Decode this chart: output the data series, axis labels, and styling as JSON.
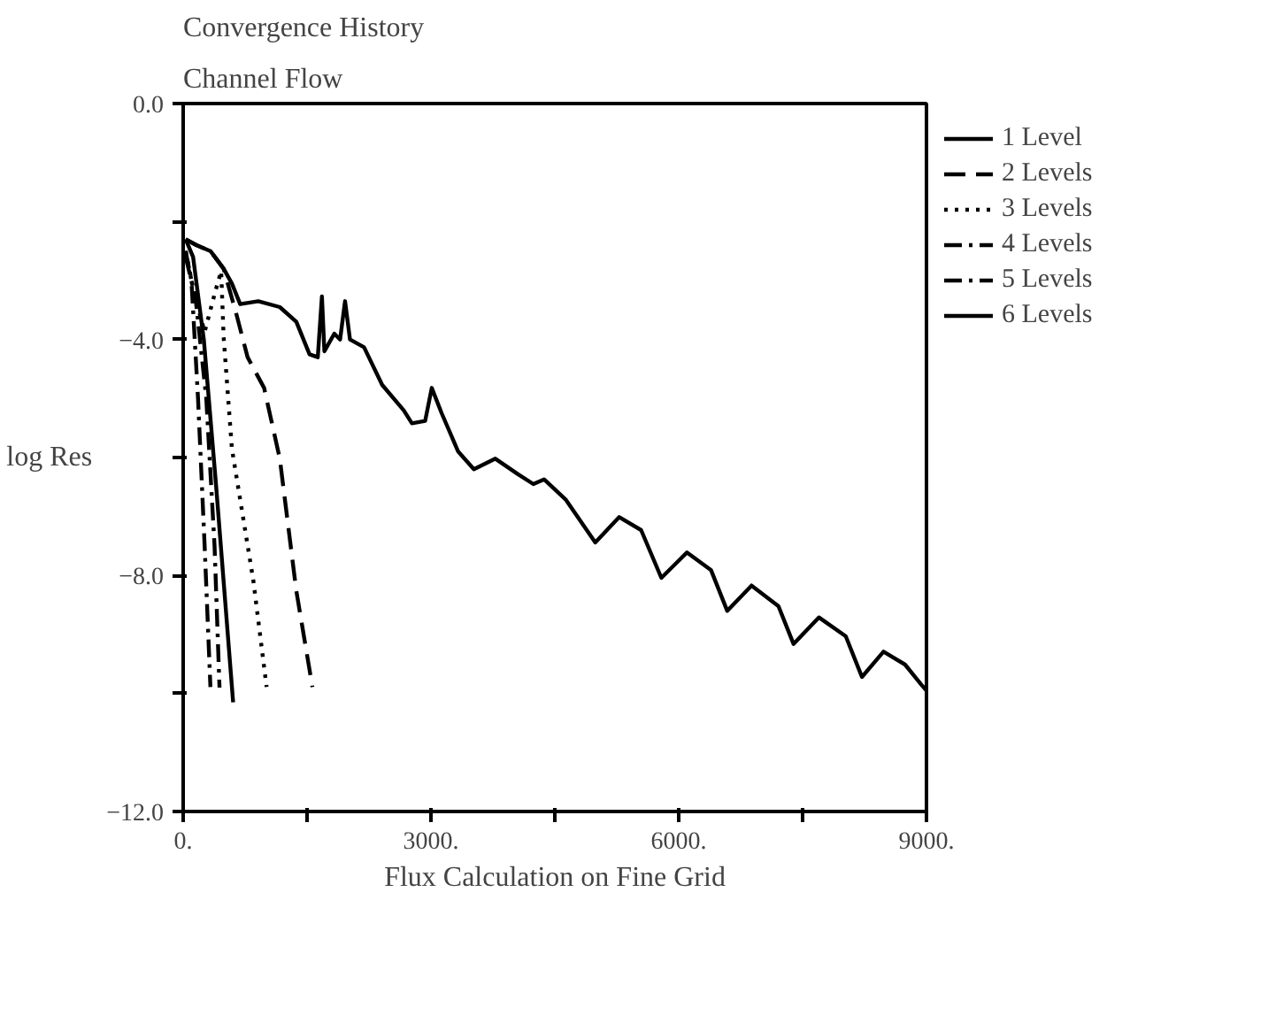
{
  "chart_data": {
    "type": "line",
    "title": "Convergence History",
    "subtitle": "Channel Flow",
    "xlabel": "Flux Calculation on Fine Grid",
    "ylabel": "log Res",
    "xlim": [
      0,
      9000
    ],
    "ylim": [
      -12,
      0
    ],
    "xticks": [
      {
        "value": 0,
        "label": "0."
      },
      {
        "value": 1500,
        "label": null
      },
      {
        "value": 3000,
        "label": "3000."
      },
      {
        "value": 4500,
        "label": null
      },
      {
        "value": 6000,
        "label": "6000."
      },
      {
        "value": 7500,
        "label": null
      },
      {
        "value": 9000,
        "label": "9000."
      }
    ],
    "yticks": [
      {
        "value": -12,
        "label": "−12.0"
      },
      {
        "value": -10,
        "label": null
      },
      {
        "value": -8,
        "label": "−8.0"
      },
      {
        "value": -6,
        "label": null
      },
      {
        "value": -4,
        "label": "−4.0"
      },
      {
        "value": -2,
        "label": null
      },
      {
        "value": 0,
        "label": "0.0"
      }
    ],
    "grid": false,
    "legend": "top right",
    "series": [
      {
        "name": "1 Level",
        "color": "#000000",
        "line_style": "solid",
        "x": [
          30,
          160,
          330,
          490,
          590,
          690,
          910,
          1170,
          1370,
          1530,
          1630,
          1680,
          1710,
          1830,
          1900,
          1960,
          2020,
          2190,
          2410,
          2670,
          2770,
          2930,
          3010,
          3130,
          3330,
          3520,
          3780,
          4050,
          4240,
          4370,
          4630,
          4990,
          5280,
          5545,
          5790,
          6099,
          6392,
          6588,
          6882,
          7208,
          7390,
          7697,
          8023,
          8219,
          8480,
          8741,
          8937,
          9000
        ],
        "values": [
          -2.3,
          -2.4,
          -2.5,
          -2.8,
          -3.05,
          -3.4,
          -3.35,
          -3.45,
          -3.7,
          -4.25,
          -4.3,
          -3.27,
          -4.2,
          -3.9,
          -4.0,
          -3.35,
          -4.0,
          -4.13,
          -4.77,
          -5.2,
          -5.42,
          -5.38,
          -4.82,
          -5.25,
          -5.9,
          -6.2,
          -6.02,
          -6.28,
          -6.45,
          -6.37,
          -6.71,
          -7.44,
          -7.01,
          -7.23,
          -8.04,
          -7.61,
          -7.91,
          -8.6,
          -8.17,
          -8.52,
          -9.16,
          -8.71,
          -9.03,
          -9.72,
          -9.29,
          -9.51,
          -9.85,
          -9.95
        ]
      },
      {
        "name": "2 Levels",
        "color": "#000000",
        "line_style": "dashed",
        "x": [
          30,
          160,
          330,
          490,
          650,
          780,
          980,
          1170,
          1370,
          1565
        ],
        "values": [
          -2.3,
          -2.4,
          -2.5,
          -2.8,
          -3.6,
          -4.3,
          -4.82,
          -6.02,
          -8.26,
          -9.89
        ]
      },
      {
        "name": "3 Levels",
        "color": "#000000",
        "line_style": "dotted",
        "x": [
          30,
          130,
          260,
          390,
          460,
          490,
          590,
          720,
          850,
          1010
        ],
        "values": [
          -2.5,
          -3.2,
          -3.87,
          -3.18,
          -2.84,
          -3.96,
          -5.85,
          -6.97,
          -8.09,
          -9.89
        ]
      },
      {
        "name": "4 Levels",
        "color": "#000000",
        "line_style": "dashdot",
        "x": [
          30,
          100,
          180,
          260,
          330
        ],
        "values": [
          -2.5,
          -3.0,
          -5.0,
          -7.5,
          -9.89
        ]
      },
      {
        "name": "5 Levels",
        "color": "#000000",
        "line_style": "dashdot",
        "x": [
          30,
          150,
          280,
          380,
          440
        ],
        "values": [
          -2.6,
          -3.3,
          -5.0,
          -7.5,
          -9.9
        ]
      },
      {
        "name": "6 Levels",
        "color": "#000000",
        "line_style": "solid",
        "x": [
          30,
          120,
          250,
          400,
          605
        ],
        "values": [
          -2.3,
          -2.6,
          -4.0,
          -6.5,
          -10.15
        ]
      }
    ]
  }
}
